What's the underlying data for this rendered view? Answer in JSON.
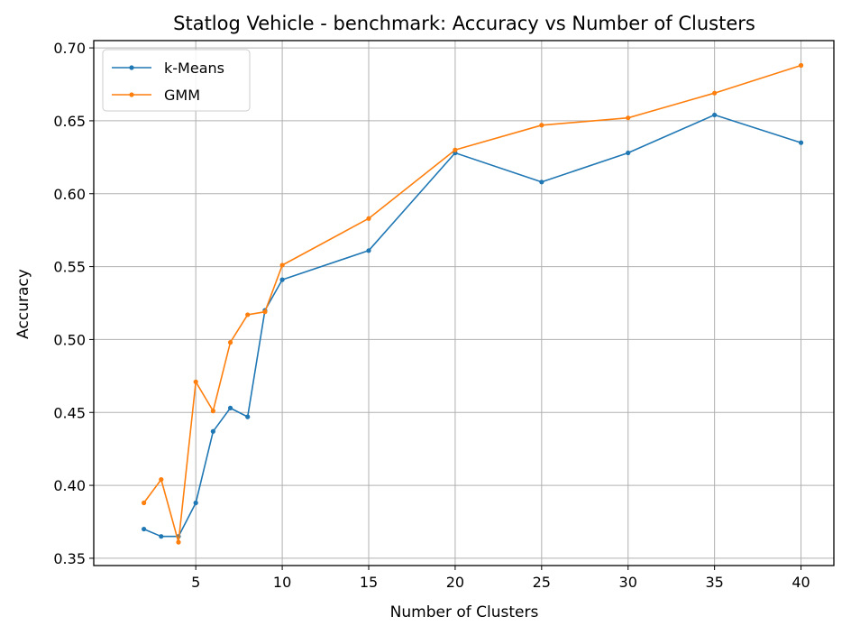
{
  "chart_data": {
    "type": "line",
    "title": "Statlog Vehicle - benchmark: Accuracy vs Number of Clusters",
    "xlabel": "Number of Clusters",
    "ylabel": "Accuracy",
    "xlim": [
      -0.9,
      41.9
    ],
    "ylim": [
      0.345,
      0.705
    ],
    "xticks": [
      5,
      10,
      15,
      20,
      25,
      30,
      35,
      40
    ],
    "xtick_labels": [
      "5",
      "10",
      "15",
      "20",
      "25",
      "30",
      "35",
      "40"
    ],
    "yticks": [
      0.35,
      0.4,
      0.45,
      0.5,
      0.55,
      0.6,
      0.65,
      0.7
    ],
    "ytick_labels": [
      "0.35",
      "0.40",
      "0.45",
      "0.50",
      "0.55",
      "0.60",
      "0.65",
      "0.70"
    ],
    "grid": true,
    "legend_position": "top-left",
    "x": [
      2,
      3,
      4,
      5,
      6,
      7,
      8,
      9,
      10,
      15,
      20,
      25,
      30,
      35,
      40
    ],
    "series": [
      {
        "name": "k-Means",
        "color": "#1f77b4",
        "values": [
          0.37,
          0.365,
          0.365,
          0.388,
          0.437,
          0.453,
          0.447,
          0.52,
          0.541,
          0.561,
          0.628,
          0.608,
          0.628,
          0.654,
          0.635
        ]
      },
      {
        "name": "GMM",
        "color": "#ff7f0e",
        "values": [
          0.388,
          0.404,
          0.361,
          0.471,
          0.451,
          0.498,
          0.517,
          0.519,
          0.551,
          0.583,
          0.63,
          0.647,
          0.652,
          0.669,
          0.688
        ]
      }
    ]
  }
}
